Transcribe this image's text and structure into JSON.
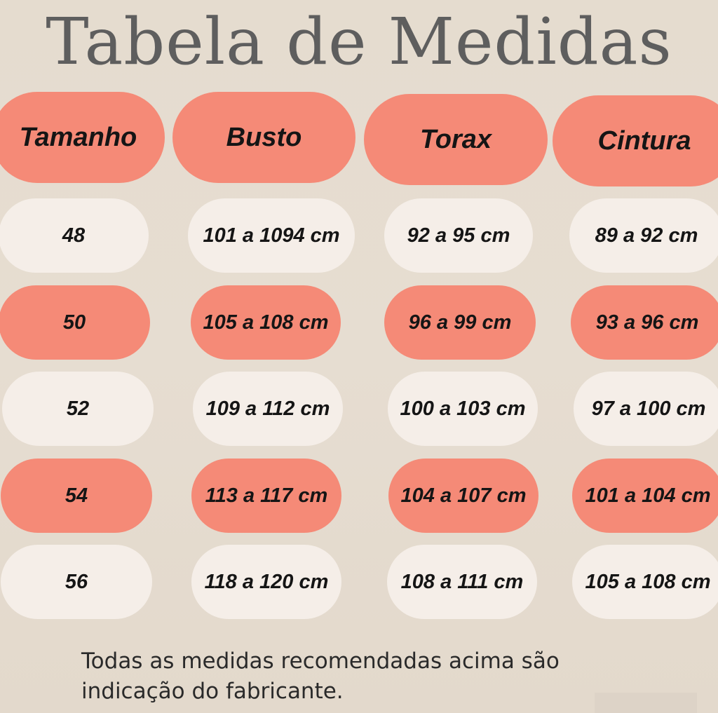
{
  "title": "Tabela de Medidas",
  "headers": [
    "Tamanho",
    "Busto",
    "Torax",
    "Cintura"
  ],
  "rows": [
    {
      "tamanho": "48",
      "busto": "101 a 1094 cm",
      "torax": "92 a 95 cm",
      "cintura": "89 a 92 cm"
    },
    {
      "tamanho": "50",
      "busto": "105 a 108 cm",
      "torax": "96 a 99 cm",
      "cintura": "93 a 96 cm"
    },
    {
      "tamanho": "52",
      "busto": "109 a 112 cm",
      "torax": "100 a 103 cm",
      "cintura": "97 a 100 cm"
    },
    {
      "tamanho": "54",
      "busto": "113 a 117 cm",
      "torax": "104 a 107 cm",
      "cintura": "101 a 104 cm"
    },
    {
      "tamanho": "56",
      "busto": "118 a 120 cm",
      "torax": "108 a 111 cm",
      "cintura": "105 a 108 cm"
    }
  ],
  "note_line1": "Todas as medidas recomendadas acima são",
  "note_line2": "indicação do fabricante.",
  "colors": {
    "coral": "#f58a77",
    "light": "#f5eee8",
    "background": "#e5dccf",
    "title": "#5e5e5e"
  }
}
